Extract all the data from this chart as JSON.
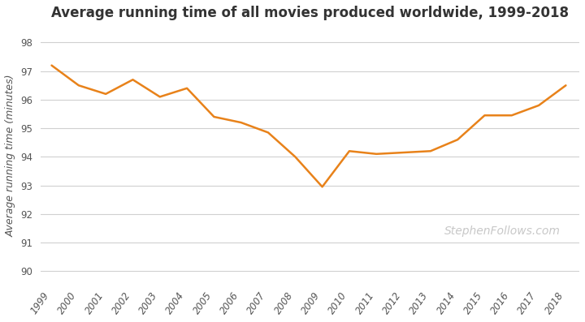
{
  "title": "Average running time of all movies produced worldwide, 1999-2018",
  "ylabel": "Average running time (minutes)",
  "years": [
    1999,
    2000,
    2001,
    2002,
    2003,
    2004,
    2005,
    2006,
    2007,
    2008,
    2009,
    2010,
    2011,
    2012,
    2013,
    2014,
    2015,
    2016,
    2017,
    2018
  ],
  "values": [
    97.2,
    96.5,
    96.2,
    96.7,
    96.1,
    96.4,
    95.4,
    95.2,
    94.85,
    94.0,
    92.95,
    94.2,
    94.1,
    94.15,
    94.2,
    94.6,
    95.45,
    95.45,
    95.8,
    96.5
  ],
  "line_color": "#E8821A",
  "line_width": 1.8,
  "background_color": "#ffffff",
  "grid_color": "#d0d0d0",
  "title_fontsize": 12,
  "label_fontsize": 9,
  "tick_fontsize": 8.5,
  "ylim": [
    89.6,
    98.5
  ],
  "yticks": [
    90,
    91,
    92,
    93,
    94,
    95,
    96,
    97,
    98
  ],
  "watermark": "StephenFollows.com",
  "watermark_color": "#c8c8c8",
  "watermark_fontsize": 10,
  "tick_color": "#555555",
  "label_color": "#555555",
  "title_color": "#333333"
}
